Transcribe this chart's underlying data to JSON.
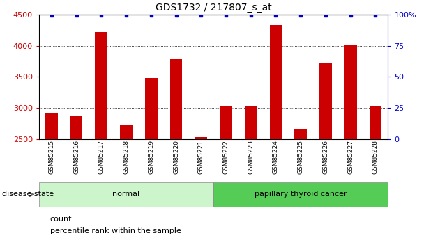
{
  "title": "GDS1732 / 217807_s_at",
  "samples": [
    "GSM85215",
    "GSM85216",
    "GSM85217",
    "GSM85218",
    "GSM85219",
    "GSM85220",
    "GSM85221",
    "GSM85222",
    "GSM85223",
    "GSM85224",
    "GSM85225",
    "GSM85226",
    "GSM85227",
    "GSM85228"
  ],
  "counts": [
    2930,
    2870,
    4220,
    2730,
    3480,
    3780,
    2540,
    3040,
    3020,
    4330,
    2670,
    3730,
    4020,
    3040
  ],
  "percentile_val": 99,
  "bar_color": "#cc0000",
  "percentile_color": "#0000cc",
  "ylim_left": [
    2500,
    4500
  ],
  "ylim_right": [
    0,
    100
  ],
  "yticks_left": [
    2500,
    3000,
    3500,
    4000,
    4500
  ],
  "yticks_right": [
    0,
    25,
    50,
    75,
    100
  ],
  "groups": [
    {
      "label": "normal",
      "start": 0,
      "end": 6,
      "color": "#ccf5cc"
    },
    {
      "label": "papillary thyroid cancer",
      "start": 7,
      "end": 13,
      "color": "#55cc55"
    }
  ],
  "disease_state_label": "disease state",
  "legend_count_label": "count",
  "legend_percentile_label": "percentile rank within the sample",
  "bg": "#ffffff",
  "title_fontsize": 10,
  "tick_fontsize": 8,
  "bar_width": 0.5,
  "gray_bg": "#cccccc"
}
